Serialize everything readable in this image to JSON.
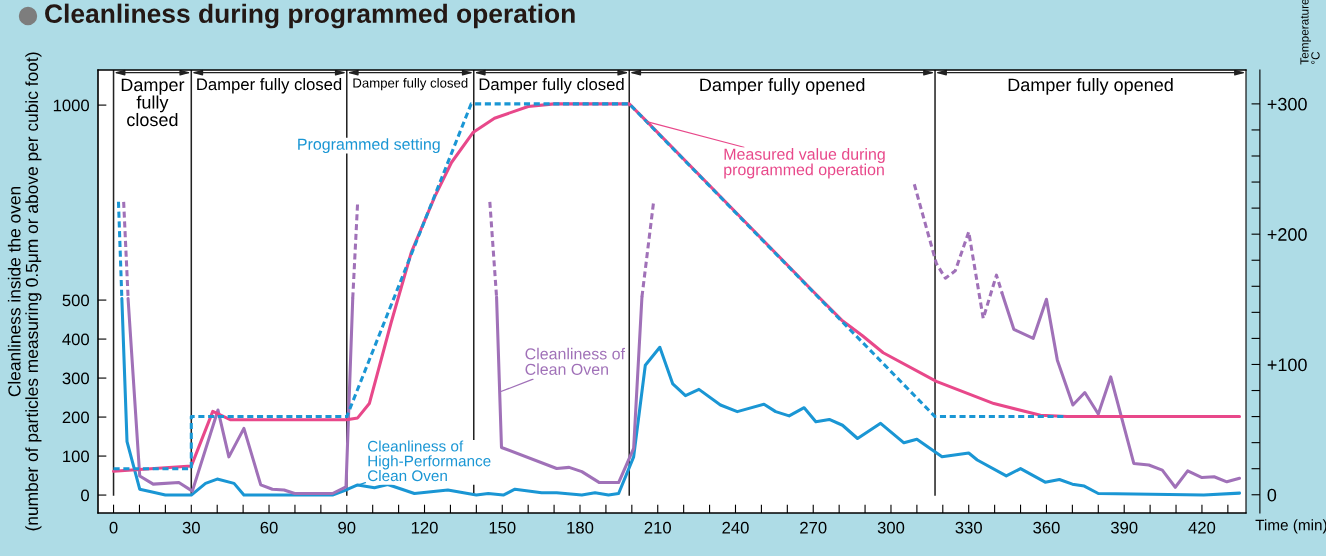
{
  "chart_data": {
    "type": "line",
    "title": "Cleanliness during programmed operation",
    "xlabel": "Time (min)",
    "ylabel": "Cleanliness inside the oven\n(number of particles measuring 0.5μm or above per cubic foot)",
    "y2label": "Temperature\n°C",
    "xlim": [
      -6,
      437
    ],
    "xticks": [
      {
        "value": 0,
        "label": "0"
      },
      {
        "value": 10,
        "label": null
      },
      {
        "value": 20,
        "label": null
      },
      {
        "value": 30,
        "label": "30"
      },
      {
        "value": 40,
        "label": null
      },
      {
        "value": 50,
        "label": null
      },
      {
        "value": 60,
        "label": "60"
      },
      {
        "value": 70,
        "label": null
      },
      {
        "value": 80,
        "label": null
      },
      {
        "value": 90,
        "label": "90"
      },
      {
        "value": 100,
        "label": null
      },
      {
        "value": 110,
        "label": null
      },
      {
        "value": 120,
        "label": "120"
      },
      {
        "value": 130,
        "label": null
      },
      {
        "value": 140,
        "label": null
      },
      {
        "value": 150,
        "label": "150"
      },
      {
        "value": 160,
        "label": null
      },
      {
        "value": 170,
        "label": null
      },
      {
        "value": 180,
        "label": "180"
      },
      {
        "value": 190,
        "label": null
      },
      {
        "value": 200,
        "label": null
      },
      {
        "value": 210,
        "label": "210"
      },
      {
        "value": 220,
        "label": null
      },
      {
        "value": 230,
        "label": null
      },
      {
        "value": 240,
        "label": "240"
      },
      {
        "value": 250,
        "label": null
      },
      {
        "value": 260,
        "label": null
      },
      {
        "value": 270,
        "label": "270"
      },
      {
        "value": 280,
        "label": null
      },
      {
        "value": 290,
        "label": null
      },
      {
        "value": 300,
        "label": "300"
      },
      {
        "value": 310,
        "label": null
      },
      {
        "value": 320,
        "label": null
      },
      {
        "value": 330,
        "label": "330"
      },
      {
        "value": 340,
        "label": null
      },
      {
        "value": 350,
        "label": null
      },
      {
        "value": 360,
        "label": "360"
      },
      {
        "value": 370,
        "label": null
      },
      {
        "value": 380,
        "label": null
      },
      {
        "value": 390,
        "label": "390"
      },
      {
        "value": 400,
        "label": null
      },
      {
        "value": 410,
        "label": null
      },
      {
        "value": 420,
        "label": "420"
      },
      {
        "value": 430,
        "label": null
      }
    ],
    "ylim": [
      -46,
      1090
    ],
    "yticks": [
      0,
      100,
      200,
      300,
      400,
      500,
      1000
    ],
    "y2lim": [
      -14,
      326
    ],
    "y2ticks": [
      {
        "value": 0,
        "label": "0"
      },
      {
        "value": 20,
        "label": null
      },
      {
        "value": 40,
        "label": null
      },
      {
        "value": 60,
        "label": null
      },
      {
        "value": 80,
        "label": null
      },
      {
        "value": 100,
        "label": "+100"
      },
      {
        "value": 120,
        "label": null
      },
      {
        "value": 140,
        "label": null
      },
      {
        "value": 160,
        "label": null
      },
      {
        "value": 180,
        "label": null
      },
      {
        "value": 200,
        "label": "+200"
      },
      {
        "value": 220,
        "label": null
      },
      {
        "value": 240,
        "label": null
      },
      {
        "value": 260,
        "label": null
      },
      {
        "value": 280,
        "label": null
      },
      {
        "value": 300,
        "label": "+300"
      }
    ],
    "ref_lines": [
      {
        "axis": "x",
        "value": 0
      },
      {
        "axis": "x",
        "value": 30
      },
      {
        "axis": "x",
        "value": 90
      },
      {
        "axis": "x",
        "value": 139
      },
      {
        "axis": "x",
        "value": 199
      },
      {
        "axis": "x",
        "value": 317
      }
    ],
    "annotations": [
      "Damper\nfully\nclosed",
      "Damper fully closed",
      "Damper fully closed",
      "Damper fully closed",
      "Damper fully opened",
      "Damper fully opened"
    ],
    "series": [
      {
        "name": "Programmed setting",
        "axis": "y2",
        "line_style": "dashed",
        "color": "#1a96d4",
        "x": [
          0,
          30,
          30,
          90,
          138,
          199,
          317,
          367
        ],
        "values": [
          20,
          20,
          60,
          60,
          300,
          300,
          60,
          60
        ]
      },
      {
        "name": "Measured value during\nprogrammed operation",
        "axis": "y2",
        "line_style": "solid",
        "color": "#e8488a",
        "x": [
          0,
          30,
          38.3,
          45.2,
          90,
          94.2,
          98.7,
          107.1,
          114.9,
          124,
          130.4,
          138.7,
          147,
          160,
          170,
          199,
          206.5,
          240,
          270,
          281,
          289,
          297,
          317.5,
          339.7,
          357.7,
          368,
          434.5
        ],
        "values": [
          18,
          22,
          64,
          57.5,
          57.5,
          59,
          70,
          132,
          186,
          229,
          255,
          278,
          289,
          298,
          300,
          300,
          285,
          217,
          156,
          134,
          122,
          109,
          87,
          70,
          61,
          60,
          60
        ]
      },
      {
        "name": "Cleanliness of\nHigh-Performance\nClean Oven",
        "axis": "y",
        "line_style": "solid",
        "color": "#1a96d4",
        "x": [
          3.2,
          5.2,
          10.1,
          14.9,
          20,
          30,
          35.5,
          40,
          46.5,
          50.3,
          84.5,
          90.4,
          94.2,
          100.7,
          105.8,
          116.1,
          129,
          140,
          144.6,
          150.4,
          154.9,
          165.2,
          171,
          180.7,
          185.8,
          191,
          194.9,
          200.7,
          205.2,
          210.8,
          215.8,
          220.7,
          225.9,
          234.2,
          240.7,
          251,
          255.5,
          260.7,
          266.5,
          271,
          276.2,
          281.3,
          287.1,
          296,
          305,
          310,
          319.7,
          330,
          333.3,
          344.5,
          350,
          359.5,
          365,
          370,
          374.6,
          380,
          420.7,
          434.5
        ],
        "values": [
          504,
          137,
          15,
          8,
          0,
          0,
          30,
          41,
          30,
          0,
          0,
          15,
          26,
          19,
          27,
          4,
          13,
          0,
          4,
          0,
          15,
          6,
          6,
          0,
          6,
          0,
          4,
          98,
          333,
          379,
          285,
          255,
          271,
          231,
          214,
          233,
          214,
          203,
          224,
          188,
          194,
          179,
          145,
          184,
          134,
          143,
          98,
          108,
          90,
          49,
          68,
          33,
          40,
          28,
          23,
          4,
          0,
          5
        ]
      },
      {
        "axis": "y",
        "line_style": "dashed",
        "color": "#1a96d4",
        "x": [
          1.9,
          3.2
        ],
        "values": [
          752,
          504
        ]
      },
      {
        "name": "Cleanliness of\nClean Oven",
        "axis": "y",
        "line_style": "solid",
        "color": "#a071b8",
        "x": [
          5.6,
          10.1,
          15.3,
          25.2,
          30.4,
          40.3,
          44.5,
          50.3,
          56.8,
          61.3,
          65.8,
          69.9,
          84.5,
          89.7,
          92.3,
          120,
          147.8,
          149.7,
          171,
          175.8,
          180.7,
          187.5,
          194.9,
          200.7,
          203.9,
          270,
          342.9,
          347.4,
          354.9,
          360,
          364.2,
          370.2,
          374.8,
          380,
          384.8,
          393.7,
          399.5,
          404.7,
          409.7,
          414.5,
          420,
          424.7,
          429.6,
          434.5
        ],
        "values": [
          504,
          49,
          28,
          32,
          10,
          218,
          98,
          171,
          26,
          15,
          13,
          4,
          4,
          21,
          504,
          null,
          508,
          122,
          68,
          71,
          60,
          32,
          32,
          120,
          508,
          null,
          517,
          425,
          402,
          502,
          346,
          231,
          263,
          208,
          303,
          81,
          77,
          64,
          20,
          62,
          45,
          47,
          34,
          43
        ]
      },
      {
        "axis": "y",
        "line_style": "dashed",
        "color": "#a071b8",
        "x": [
          3.9,
          5.6,
          50,
          92.3,
          94.2,
          120,
          145.2,
          147.8,
          170,
          203.9,
          208.4,
          260,
          309,
          317.5,
          321,
          324.8,
          330,
          335.6,
          340.7,
          342.9
        ],
        "values": [
          752,
          508,
          null,
          504,
          752,
          null,
          752,
          508,
          null,
          508,
          752,
          null,
          797,
          594,
          556,
          575,
          675,
          453,
          564,
          517
        ]
      }
    ]
  }
}
